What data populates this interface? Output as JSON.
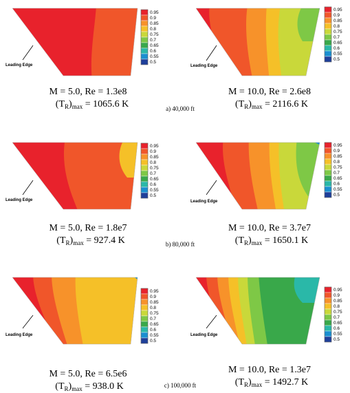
{
  "leading_edge_label": "Leading Edge",
  "colorbar": {
    "ticks": [
      "0.95",
      "0.9",
      "0.85",
      "0.8",
      "0.75",
      "0.7",
      "0.65",
      "0.6",
      "0.55",
      "0.5"
    ],
    "colors": [
      "#e8222c",
      "#f0562a",
      "#f7922a",
      "#f5c028",
      "#c9d83a",
      "#7ec846",
      "#39a84a",
      "#2ab8a8",
      "#1a8fd0",
      "#1e3f9a"
    ]
  },
  "rows": [
    {
      "caption": "a) 40,000 ft",
      "panels": [
        {
          "line1": "M = 5.0, Re = 1.3e8",
          "tr_value": " = 1065.6 K"
        },
        {
          "line1": "M = 10.0, Re = 2.6e8",
          "tr_value": " = 2116.6 K"
        }
      ]
    },
    {
      "caption": "b) 80,000 ft",
      "panels": [
        {
          "line1": "M = 5.0, Re = 1.8e7",
          "tr_value": " = 927.4 K"
        },
        {
          "line1": "M = 10.0, Re = 3.7e7",
          "tr_value": " = 1650.1 K"
        }
      ]
    },
    {
      "caption": "c) 100,000 ft",
      "panels": [
        {
          "line1": "M = 5.0, Re = 6.5e6",
          "tr_value": " = 938.0 K"
        },
        {
          "line1": "M = 10.0, Re = 1.3e7",
          "tr_value": " = 1492.7 K"
        }
      ]
    }
  ],
  "tr_symbol": "T",
  "tr_sub": "R",
  "tr_max": "max"
}
